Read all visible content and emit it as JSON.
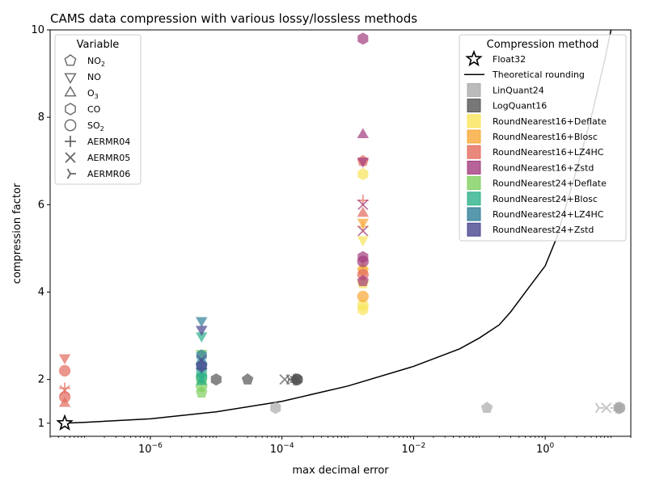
{
  "chart_data": {
    "type": "scatter",
    "title": "CAMS data compression with various lossy/lossless methods",
    "xlabel": "max decimal error",
    "ylabel": "compression factor",
    "xscale": "log",
    "xlim": [
      3e-08,
      20
    ],
    "ylim": [
      0.7,
      10
    ],
    "grid": false,
    "y_ticks": [
      {
        "value": 1,
        "label": "1"
      },
      {
        "value": 2,
        "label": "2"
      },
      {
        "value": 4,
        "label": "4"
      },
      {
        "value": 6,
        "label": "6"
      },
      {
        "value": 8,
        "label": "8"
      },
      {
        "value": 10,
        "label": "10"
      }
    ],
    "x_ticks": [
      {
        "value": 1e-06,
        "base": "10",
        "exp": "−6"
      },
      {
        "value": 0.0001,
        "base": "10",
        "exp": "−4"
      },
      {
        "value": 0.01,
        "base": "10",
        "exp": "−2"
      },
      {
        "value": 1,
        "base": "10",
        "exp": "0"
      }
    ],
    "legend_variable": {
      "title": "Variable",
      "placement": "top-left",
      "entries": [
        {
          "marker": "pentagon",
          "name": "NO",
          "sub": "2"
        },
        {
          "marker": "triangle-down",
          "name": "NO",
          "sub": ""
        },
        {
          "marker": "triangle-up",
          "name": "O",
          "sub": "3"
        },
        {
          "marker": "hexagon",
          "name": "CO",
          "sub": ""
        },
        {
          "marker": "circle",
          "name": "SO",
          "sub": "2"
        },
        {
          "marker": "plus",
          "name": "AERMR04",
          "sub": ""
        },
        {
          "marker": "x",
          "name": "AERMR05",
          "sub": ""
        },
        {
          "marker": "tri",
          "name": "AERMR06",
          "sub": ""
        }
      ]
    },
    "legend_method": {
      "title": "Compression method",
      "placement": "top-right",
      "entries": [
        {
          "kind": "star",
          "name": "Float32",
          "color": "#000000"
        },
        {
          "kind": "line",
          "name": "Theoretical rounding",
          "color": "#000000"
        },
        {
          "kind": "square",
          "name": "LinQuant24",
          "color": "#aaaaaa"
        },
        {
          "kind": "square",
          "name": "LogQuant16",
          "color": "#555555"
        },
        {
          "kind": "square",
          "name": "RoundNearest16+Deflate",
          "color": "#f9e55b"
        },
        {
          "kind": "square",
          "name": "RoundNearest16+Blosc",
          "color": "#f8a836"
        },
        {
          "kind": "square",
          "name": "RoundNearest16+LZ4HC",
          "color": "#e36b5d"
        },
        {
          "kind": "square",
          "name": "RoundNearest16+Zstd",
          "color": "#a23c7e"
        },
        {
          "kind": "square",
          "name": "RoundNearest24+Deflate",
          "color": "#7fd05f"
        },
        {
          "kind": "square",
          "name": "RoundNearest24+Blosc",
          "color": "#2db18b"
        },
        {
          "kind": "square",
          "name": "RoundNearest24+LZ4HC",
          "color": "#2f7e98"
        },
        {
          "kind": "square",
          "name": "RoundNearest24+Zstd",
          "color": "#48468f"
        }
      ]
    },
    "theoretical_rounding": {
      "color": "#000000",
      "points": [
        [
          5e-08,
          1.0
        ],
        [
          1e-07,
          1.02
        ],
        [
          1e-06,
          1.1
        ],
        [
          1e-05,
          1.26
        ],
        [
          0.0001,
          1.5
        ],
        [
          0.001,
          1.85
        ],
        [
          0.01,
          2.3
        ],
        [
          0.05,
          2.7
        ],
        [
          0.1,
          2.95
        ],
        [
          0.2,
          3.25
        ],
        [
          0.3,
          3.55
        ],
        [
          0.5,
          4.0
        ],
        [
          1.0,
          4.6
        ],
        [
          1.5,
          5.25
        ],
        [
          2.0,
          5.9
        ],
        [
          3.0,
          6.8
        ],
        [
          5.0,
          8.0
        ],
        [
          8.0,
          9.3
        ],
        [
          10,
          10
        ]
      ]
    },
    "float32_reference": {
      "x": 5e-08,
      "y": 1.0
    },
    "series": [
      {
        "method": "LinQuant24",
        "color": "#aaaaaa",
        "points": [
          {
            "x": 8e-05,
            "y": 1.35,
            "marker": "hexagon"
          },
          {
            "x": 0.13,
            "y": 1.35,
            "marker": "pentagon"
          },
          {
            "x": 6.5,
            "y": 1.35,
            "marker": "tri"
          },
          {
            "x": 8.5,
            "y": 1.35,
            "marker": "x"
          },
          {
            "x": 12,
            "y": 1.35,
            "marker": "plus"
          },
          {
            "x": 13,
            "y": 1.35,
            "marker": "triangle-down"
          },
          {
            "x": 13,
            "y": 1.35,
            "marker": "triangle-up"
          },
          {
            "x": 13.5,
            "y": 1.35,
            "marker": "hexagon"
          },
          {
            "x": 13.5,
            "y": 1.35,
            "marker": "circle"
          }
        ]
      },
      {
        "method": "LogQuant16",
        "color": "#555555",
        "points": [
          {
            "x": 1e-05,
            "y": 2.0,
            "marker": "hexagon"
          },
          {
            "x": 3e-05,
            "y": 2.0,
            "marker": "pentagon"
          },
          {
            "x": 0.00011,
            "y": 2.0,
            "marker": "x"
          },
          {
            "x": 0.00013,
            "y": 2.0,
            "marker": "tri"
          },
          {
            "x": 0.00015,
            "y": 2.0,
            "marker": "plus"
          },
          {
            "x": 0.00016,
            "y": 2.0,
            "marker": "triangle-down"
          },
          {
            "x": 0.00016,
            "y": 2.0,
            "marker": "triangle-up"
          },
          {
            "x": 0.00017,
            "y": 2.0,
            "marker": "hexagon"
          },
          {
            "x": 0.00017,
            "y": 2.0,
            "marker": "circle"
          }
        ]
      },
      {
        "method": "RoundNearest16+Deflate",
        "color": "#f9e55b",
        "points": [
          {
            "x": 0.0017,
            "y": 6.7,
            "marker": "hexagon"
          },
          {
            "x": 0.0017,
            "y": 5.2,
            "marker": "triangle-down"
          },
          {
            "x": 0.0017,
            "y": 4.2,
            "marker": "pentagon"
          },
          {
            "x": 0.0017,
            "y": 3.6,
            "marker": "hexagon"
          },
          {
            "x": 0.0017,
            "y": 3.7,
            "marker": "circle"
          },
          {
            "x": 0.0017,
            "y": 4.6,
            "marker": "triangle-up"
          }
        ]
      },
      {
        "method": "RoundNearest16+Blosc",
        "color": "#f8a836",
        "points": [
          {
            "x": 0.0017,
            "y": 5.6,
            "marker": "triangle-down"
          },
          {
            "x": 0.0017,
            "y": 5.5,
            "marker": "plus"
          },
          {
            "x": 0.0017,
            "y": 3.9,
            "marker": "circle"
          },
          {
            "x": 0.0017,
            "y": 4.5,
            "marker": "pentagon"
          }
        ]
      },
      {
        "method": "RoundNearest16+LZ4HC",
        "color": "#e36b5d",
        "points": [
          {
            "x": 0.0017,
            "y": 7.0,
            "marker": "pentagon"
          },
          {
            "x": 0.0017,
            "y": 6.1,
            "marker": "plus"
          },
          {
            "x": 0.0017,
            "y": 5.8,
            "marker": "triangle-up"
          },
          {
            "x": 0.0017,
            "y": 4.4,
            "marker": "circle"
          },
          {
            "x": 5e-08,
            "y": 2.5,
            "marker": "triangle-down"
          },
          {
            "x": 5e-08,
            "y": 2.2,
            "marker": "circle"
          },
          {
            "x": 5e-08,
            "y": 1.8,
            "marker": "plus"
          },
          {
            "x": 5e-08,
            "y": 1.75,
            "marker": "x"
          },
          {
            "x": 5e-08,
            "y": 1.6,
            "marker": "circle"
          },
          {
            "x": 5e-08,
            "y": 1.45,
            "marker": "triangle-up"
          }
        ]
      },
      {
        "method": "RoundNearest16+Zstd",
        "color": "#a23c7e",
        "points": [
          {
            "x": 0.0017,
            "y": 9.8,
            "marker": "hexagon"
          },
          {
            "x": 0.0017,
            "y": 7.6,
            "marker": "triangle-up"
          },
          {
            "x": 0.0017,
            "y": 7.0,
            "marker": "triangle-down"
          },
          {
            "x": 0.0017,
            "y": 6.0,
            "marker": "x"
          },
          {
            "x": 0.0017,
            "y": 5.4,
            "marker": "x"
          },
          {
            "x": 0.0017,
            "y": 4.8,
            "marker": "hexagon"
          },
          {
            "x": 0.0017,
            "y": 4.7,
            "marker": "circle"
          },
          {
            "x": 0.0017,
            "y": 4.25,
            "marker": "pentagon"
          }
        ]
      },
      {
        "method": "RoundNearest24+Deflate",
        "color": "#7fd05f",
        "points": [
          {
            "x": 6e-06,
            "y": 2.6,
            "marker": "triangle-down"
          },
          {
            "x": 6e-06,
            "y": 2.0,
            "marker": "hexagon"
          },
          {
            "x": 6e-06,
            "y": 1.85,
            "marker": "circle"
          },
          {
            "x": 6e-06,
            "y": 1.7,
            "marker": "pentagon"
          },
          {
            "x": 6e-06,
            "y": 2.1,
            "marker": "plus"
          }
        ]
      },
      {
        "method": "RoundNearest24+Blosc",
        "color": "#2db18b",
        "points": [
          {
            "x": 6e-06,
            "y": 3.0,
            "marker": "triangle-down"
          },
          {
            "x": 6e-06,
            "y": 2.15,
            "marker": "hexagon"
          },
          {
            "x": 6e-06,
            "y": 2.05,
            "marker": "circle"
          },
          {
            "x": 6e-06,
            "y": 1.95,
            "marker": "triangle-up"
          }
        ]
      },
      {
        "method": "RoundNearest24+LZ4HC",
        "color": "#2f7e98",
        "points": [
          {
            "x": 6e-06,
            "y": 3.35,
            "marker": "triangle-down"
          },
          {
            "x": 6e-06,
            "y": 2.55,
            "marker": "hexagon"
          },
          {
            "x": 6e-06,
            "y": 2.35,
            "marker": "circle"
          },
          {
            "x": 6e-06,
            "y": 2.25,
            "marker": "plus"
          }
        ]
      },
      {
        "method": "RoundNearest24+Zstd",
        "color": "#48468f",
        "points": [
          {
            "x": 6e-06,
            "y": 3.15,
            "marker": "triangle-down"
          },
          {
            "x": 6e-06,
            "y": 2.45,
            "marker": "x"
          },
          {
            "x": 6e-06,
            "y": 2.3,
            "marker": "hexagon"
          }
        ]
      }
    ]
  }
}
